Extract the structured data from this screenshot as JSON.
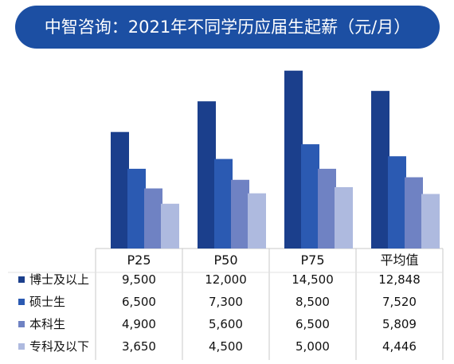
{
  "title": "中智咨询：2021年不同学历应届生起薪（元/月）",
  "chart_data": {
    "type": "bar",
    "title": "中智咨询：2021年不同学历应届生起薪（元/月）",
    "categories": [
      "P25",
      "P50",
      "P75",
      "平均值"
    ],
    "series": [
      {
        "name": "博士及以上",
        "values": [
          9500,
          12000,
          14500,
          12848
        ],
        "color": "#1b3f8c"
      },
      {
        "name": "硕士生",
        "values": [
          6500,
          7300,
          8500,
          7520
        ],
        "color": "#2b5ab2"
      },
      {
        "name": "本科生",
        "values": [
          4900,
          5600,
          6500,
          5809
        ],
        "color": "#6f82c3"
      },
      {
        "name": "专科及以下",
        "values": [
          3650,
          4500,
          5000,
          4446
        ],
        "color": "#aebadf"
      }
    ],
    "data_table_labels": [
      [
        "9,500",
        "12,000",
        "14,500",
        "12,848"
      ],
      [
        "6,500",
        "7,300",
        "8,500",
        "7,520"
      ],
      [
        "4,900",
        "5,600",
        "6,500",
        "5,809"
      ],
      [
        "3,650",
        "4,500",
        "5,000",
        "4,446"
      ]
    ],
    "ylim": [
      0,
      15000
    ],
    "legend": "bottom data table"
  }
}
